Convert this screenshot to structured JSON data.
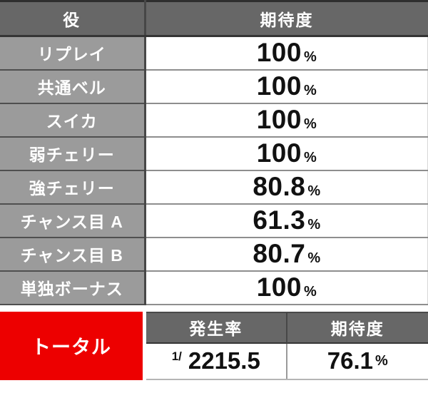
{
  "colors": {
    "header-bg": "#676767",
    "label-bg": "#9b9b9b",
    "total-red": "#ed0000",
    "text-light": "#ffffff",
    "text-dark": "#111111"
  },
  "main_table": {
    "columns": {
      "role": "役",
      "expectation": "期待度"
    },
    "rows": [
      {
        "role": "リプレイ",
        "value": "100",
        "unit": "%"
      },
      {
        "role": "共通ベル",
        "value": "100",
        "unit": "%"
      },
      {
        "role": "スイカ",
        "value": "100",
        "unit": "%"
      },
      {
        "role": "弱チェリー",
        "value": "100",
        "unit": "%"
      },
      {
        "role": "強チェリー",
        "value": "80.8",
        "unit": "%"
      },
      {
        "role": "チャンス目 A",
        "value": "61.3",
        "unit": "%"
      },
      {
        "role": "チャンス目 B",
        "value": "80.7",
        "unit": "%"
      },
      {
        "role": "単独ボーナス",
        "value": "100",
        "unit": "%"
      }
    ]
  },
  "total_table": {
    "row_label": "トータル",
    "columns": {
      "rate": "発生率",
      "expectation": "期待度"
    },
    "rate_prefix": "1/",
    "rate_value": "2215.5",
    "expectation_value": "76.1",
    "expectation_unit": "%"
  }
}
